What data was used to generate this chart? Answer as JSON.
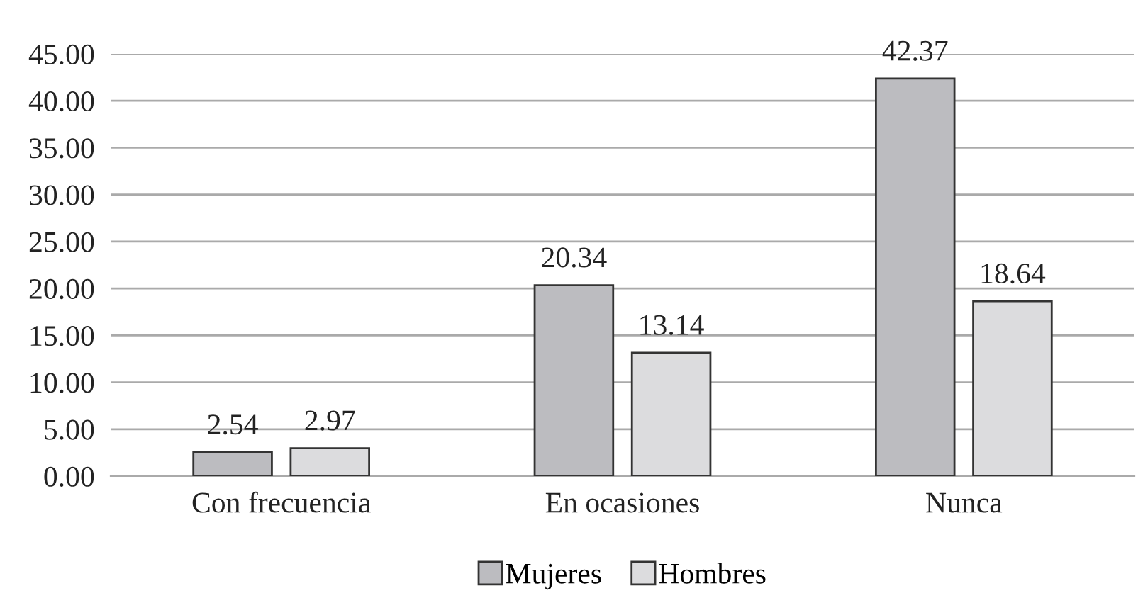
{
  "chart_data": {
    "type": "bar",
    "categories": [
      "Con frecuencia",
      "En ocasiones",
      "Nunca"
    ],
    "series": [
      {
        "name": "Mujeres",
        "color": "#bcbcc0",
        "values": [
          2.54,
          20.34,
          42.37
        ]
      },
      {
        "name": "Hombres",
        "color": "#dcdcde",
        "values": [
          2.97,
          13.14,
          18.64
        ]
      }
    ],
    "ylim": [
      0,
      45
    ],
    "yticks": [
      {
        "value": 0,
        "label": "0.00"
      },
      {
        "value": 5,
        "label": "5.00"
      },
      {
        "value": 10,
        "label": "10.00"
      },
      {
        "value": 15,
        "label": "15.00"
      },
      {
        "value": 20,
        "label": "20.00"
      },
      {
        "value": 25,
        "label": "25.00"
      },
      {
        "value": 30,
        "label": "30.00"
      },
      {
        "value": 35,
        "label": "35.00"
      },
      {
        "value": 40,
        "label": "40.00"
      },
      {
        "value": 45,
        "label": "45.00"
      }
    ],
    "grid": "y",
    "legend": "bottom",
    "data_labels": true
  }
}
